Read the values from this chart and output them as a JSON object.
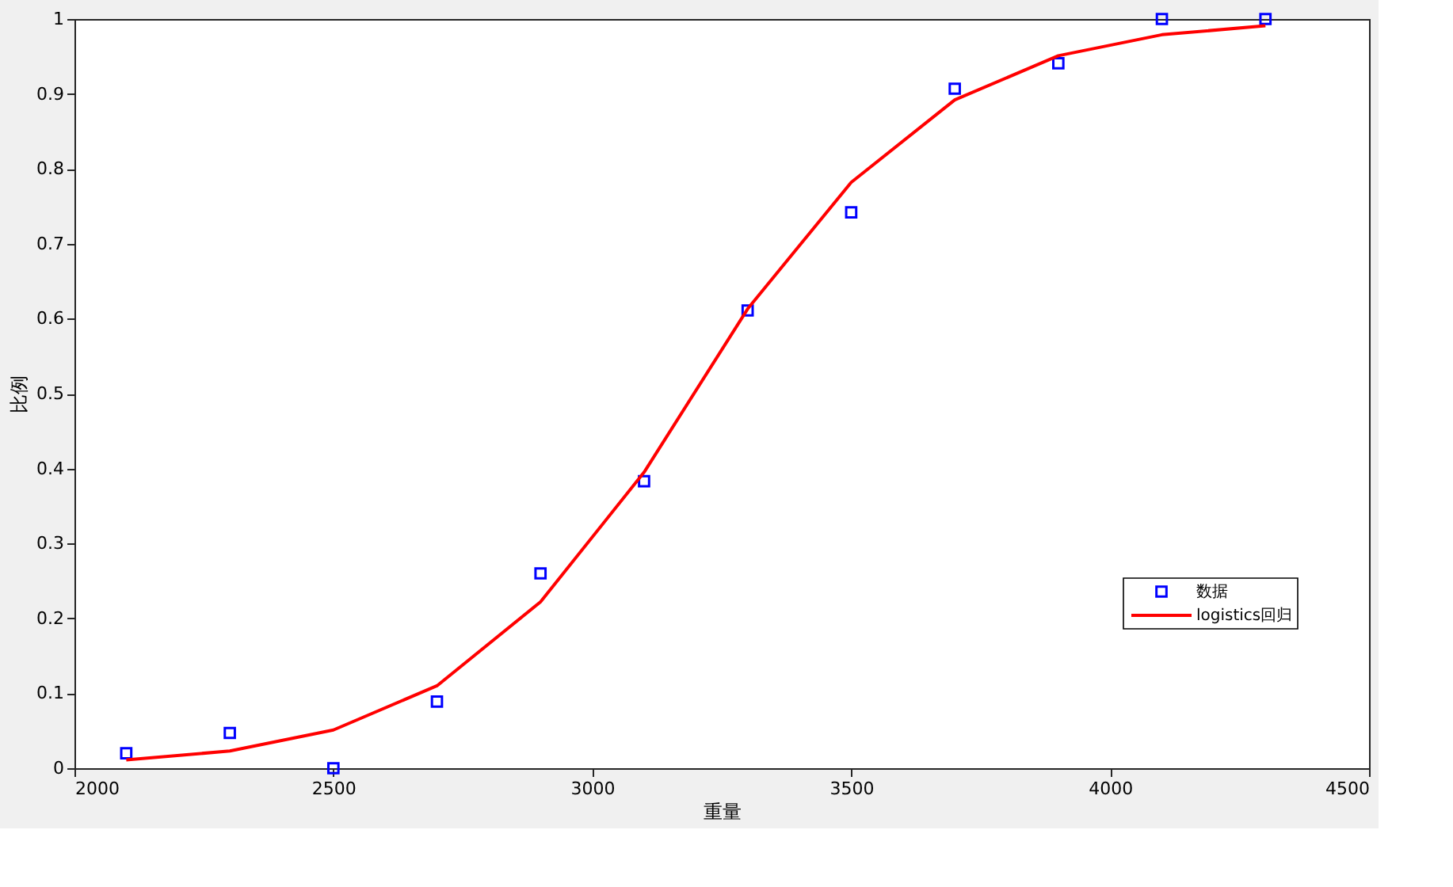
{
  "chart_data": {
    "type": "scatter",
    "xlabel": "重量",
    "ylabel": "比例",
    "x": [
      2100,
      2300,
      2500,
      2700,
      2900,
      3100,
      3300,
      3500,
      3700,
      3900,
      4100,
      4300
    ],
    "series": [
      {
        "name": "数据",
        "marker": "square",
        "color": "#0000ff",
        "values": [
          0.02,
          0.047,
          0.0,
          0.089,
          0.26,
          0.383,
          0.611,
          0.742,
          0.907,
          0.941,
          1.0,
          1.0
        ]
      },
      {
        "name": "logistics回归",
        "type": "line",
        "marker": "none",
        "line_style": "solid",
        "color": "#ff0000",
        "values": [
          0.011,
          0.023,
          0.051,
          0.11,
          0.222,
          0.395,
          0.613,
          0.782,
          0.892,
          0.951,
          0.979,
          0.991
        ]
      }
    ],
    "xlim": [
      2000,
      4500
    ],
    "xticks": [
      2000,
      2500,
      3000,
      3500,
      4000,
      4500
    ],
    "ylim": [
      0,
      1
    ],
    "yticks": [
      0,
      0.1,
      0.2,
      0.3,
      0.4,
      0.5,
      0.6,
      0.7,
      0.8,
      0.9,
      1
    ],
    "grid": false,
    "legend": "bottom right"
  }
}
